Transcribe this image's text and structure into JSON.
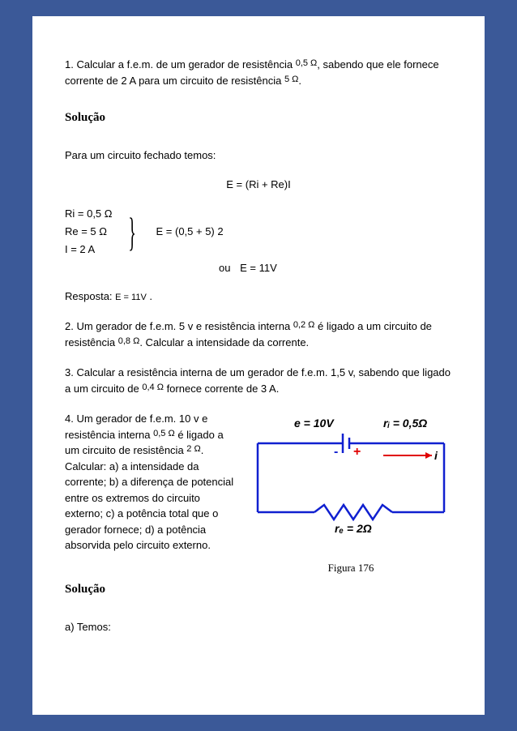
{
  "p1": {
    "a": "1. Calcular a f.e.m. de um gerador de resistência ",
    "r1": "0,5 Ω",
    "b": ", sabendo que ele fornece corrente de 2 A para um circuito de resistência ",
    "r2": "5 Ω",
    "c": "."
  },
  "sol_heading": "Solução",
  "p2": "Para um circuito fechado temos:",
  "eq_center": "E  =  (Ri + Re)I",
  "sys": {
    "l1": "Ri  =  0,5 Ω",
    "l2": "Re  =  5 Ω",
    "l3": "I  =  2 A",
    "mid": "E  =  (0,5 + 5) 2",
    "ou": "ou",
    "res": "E  =  11V"
  },
  "resp": {
    "a": "Resposta: ",
    "b": "E  =  11V",
    "c": " ."
  },
  "p3": {
    "a": "2. Um gerador de f.e.m. 5 v e resistência interna ",
    "r1": "0,2 Ω",
    "b": " é ligado a um circuito de resistência ",
    "r2": "0,8 Ω",
    "c": ". Calcular a intensidade da corrente."
  },
  "p4": {
    "a": "3. Calcular a resistência interna de um gerador de f.e.m. 1,5 v, sabendo que ligado a um circuito de ",
    "r1": "0,4 Ω",
    "b": " fornece corrente de 3 A."
  },
  "p5": {
    "a": "4. Um gerador de f.e.m. 10 v e resistência interna ",
    "r1": "0,5 Ω",
    "b": " é ligado a um circuito de resistência ",
    "r2": "2 Ω",
    "c": ". Calcular: a) a intensidade da corrente; b) a diferença de potencial entre os extremos do circuito externo; c) a potência total que o gerador fornece; d) a potência absorvida pelo circuito externo."
  },
  "fig": {
    "emf": "e = 10V",
    "ri": "rᵢ = 0,5Ω",
    "minus": "-",
    "plus": "+",
    "i": "i",
    "re": "rₑ = 2Ω",
    "caption": "Figura  176",
    "circuit_color": "#1020d0",
    "plus_color": "#e00000",
    "minus_color": "#1020d0",
    "arrow_color": "#e00000",
    "text_color": "#000000"
  },
  "p6": "a) Temos:"
}
